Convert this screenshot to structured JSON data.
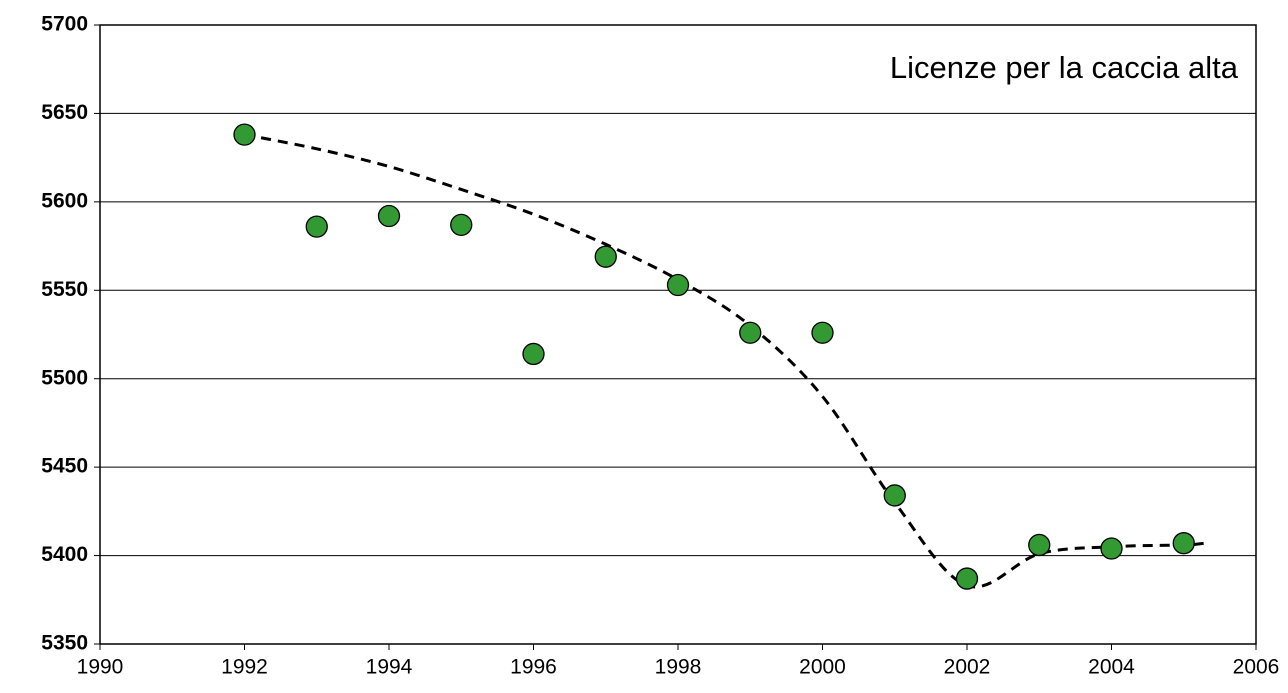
{
  "chart_data": {
    "type": "scatter",
    "title": "Licenze per la caccia alta",
    "x": [
      1992,
      1993,
      1994,
      1995,
      1996,
      1997,
      1998,
      1999,
      2000,
      2001,
      2002,
      2003,
      2004,
      2005
    ],
    "series": [
      {
        "type": "scatter",
        "color": "#339933",
        "values": [
          5638,
          5586,
          5592,
          5587,
          5514,
          5569,
          5553,
          5526,
          5526,
          5434,
          5387,
          5406,
          5404,
          5407
        ]
      },
      {
        "type": "line",
        "color": "#000000",
        "dashed": true,
        "x": [
          1992,
          1993,
          1994,
          1995,
          1996,
          1997,
          1998,
          1999,
          2000,
          2001,
          2002,
          2003,
          2004,
          2005,
          2005.3
        ],
        "values": [
          5638,
          5630,
          5620,
          5607,
          5593,
          5576,
          5556,
          5530,
          5490,
          5430,
          5383,
          5401,
          5405,
          5406,
          5407
        ]
      }
    ],
    "xlim": [
      1990,
      2006
    ],
    "xticks": [
      1990,
      1992,
      1994,
      1996,
      1998,
      2000,
      2002,
      2004,
      2006
    ],
    "ylim": [
      5350,
      5700
    ],
    "yticks": [
      5350,
      5400,
      5450,
      5500,
      5550,
      5600,
      5650,
      5700
    ],
    "grid": true
  }
}
